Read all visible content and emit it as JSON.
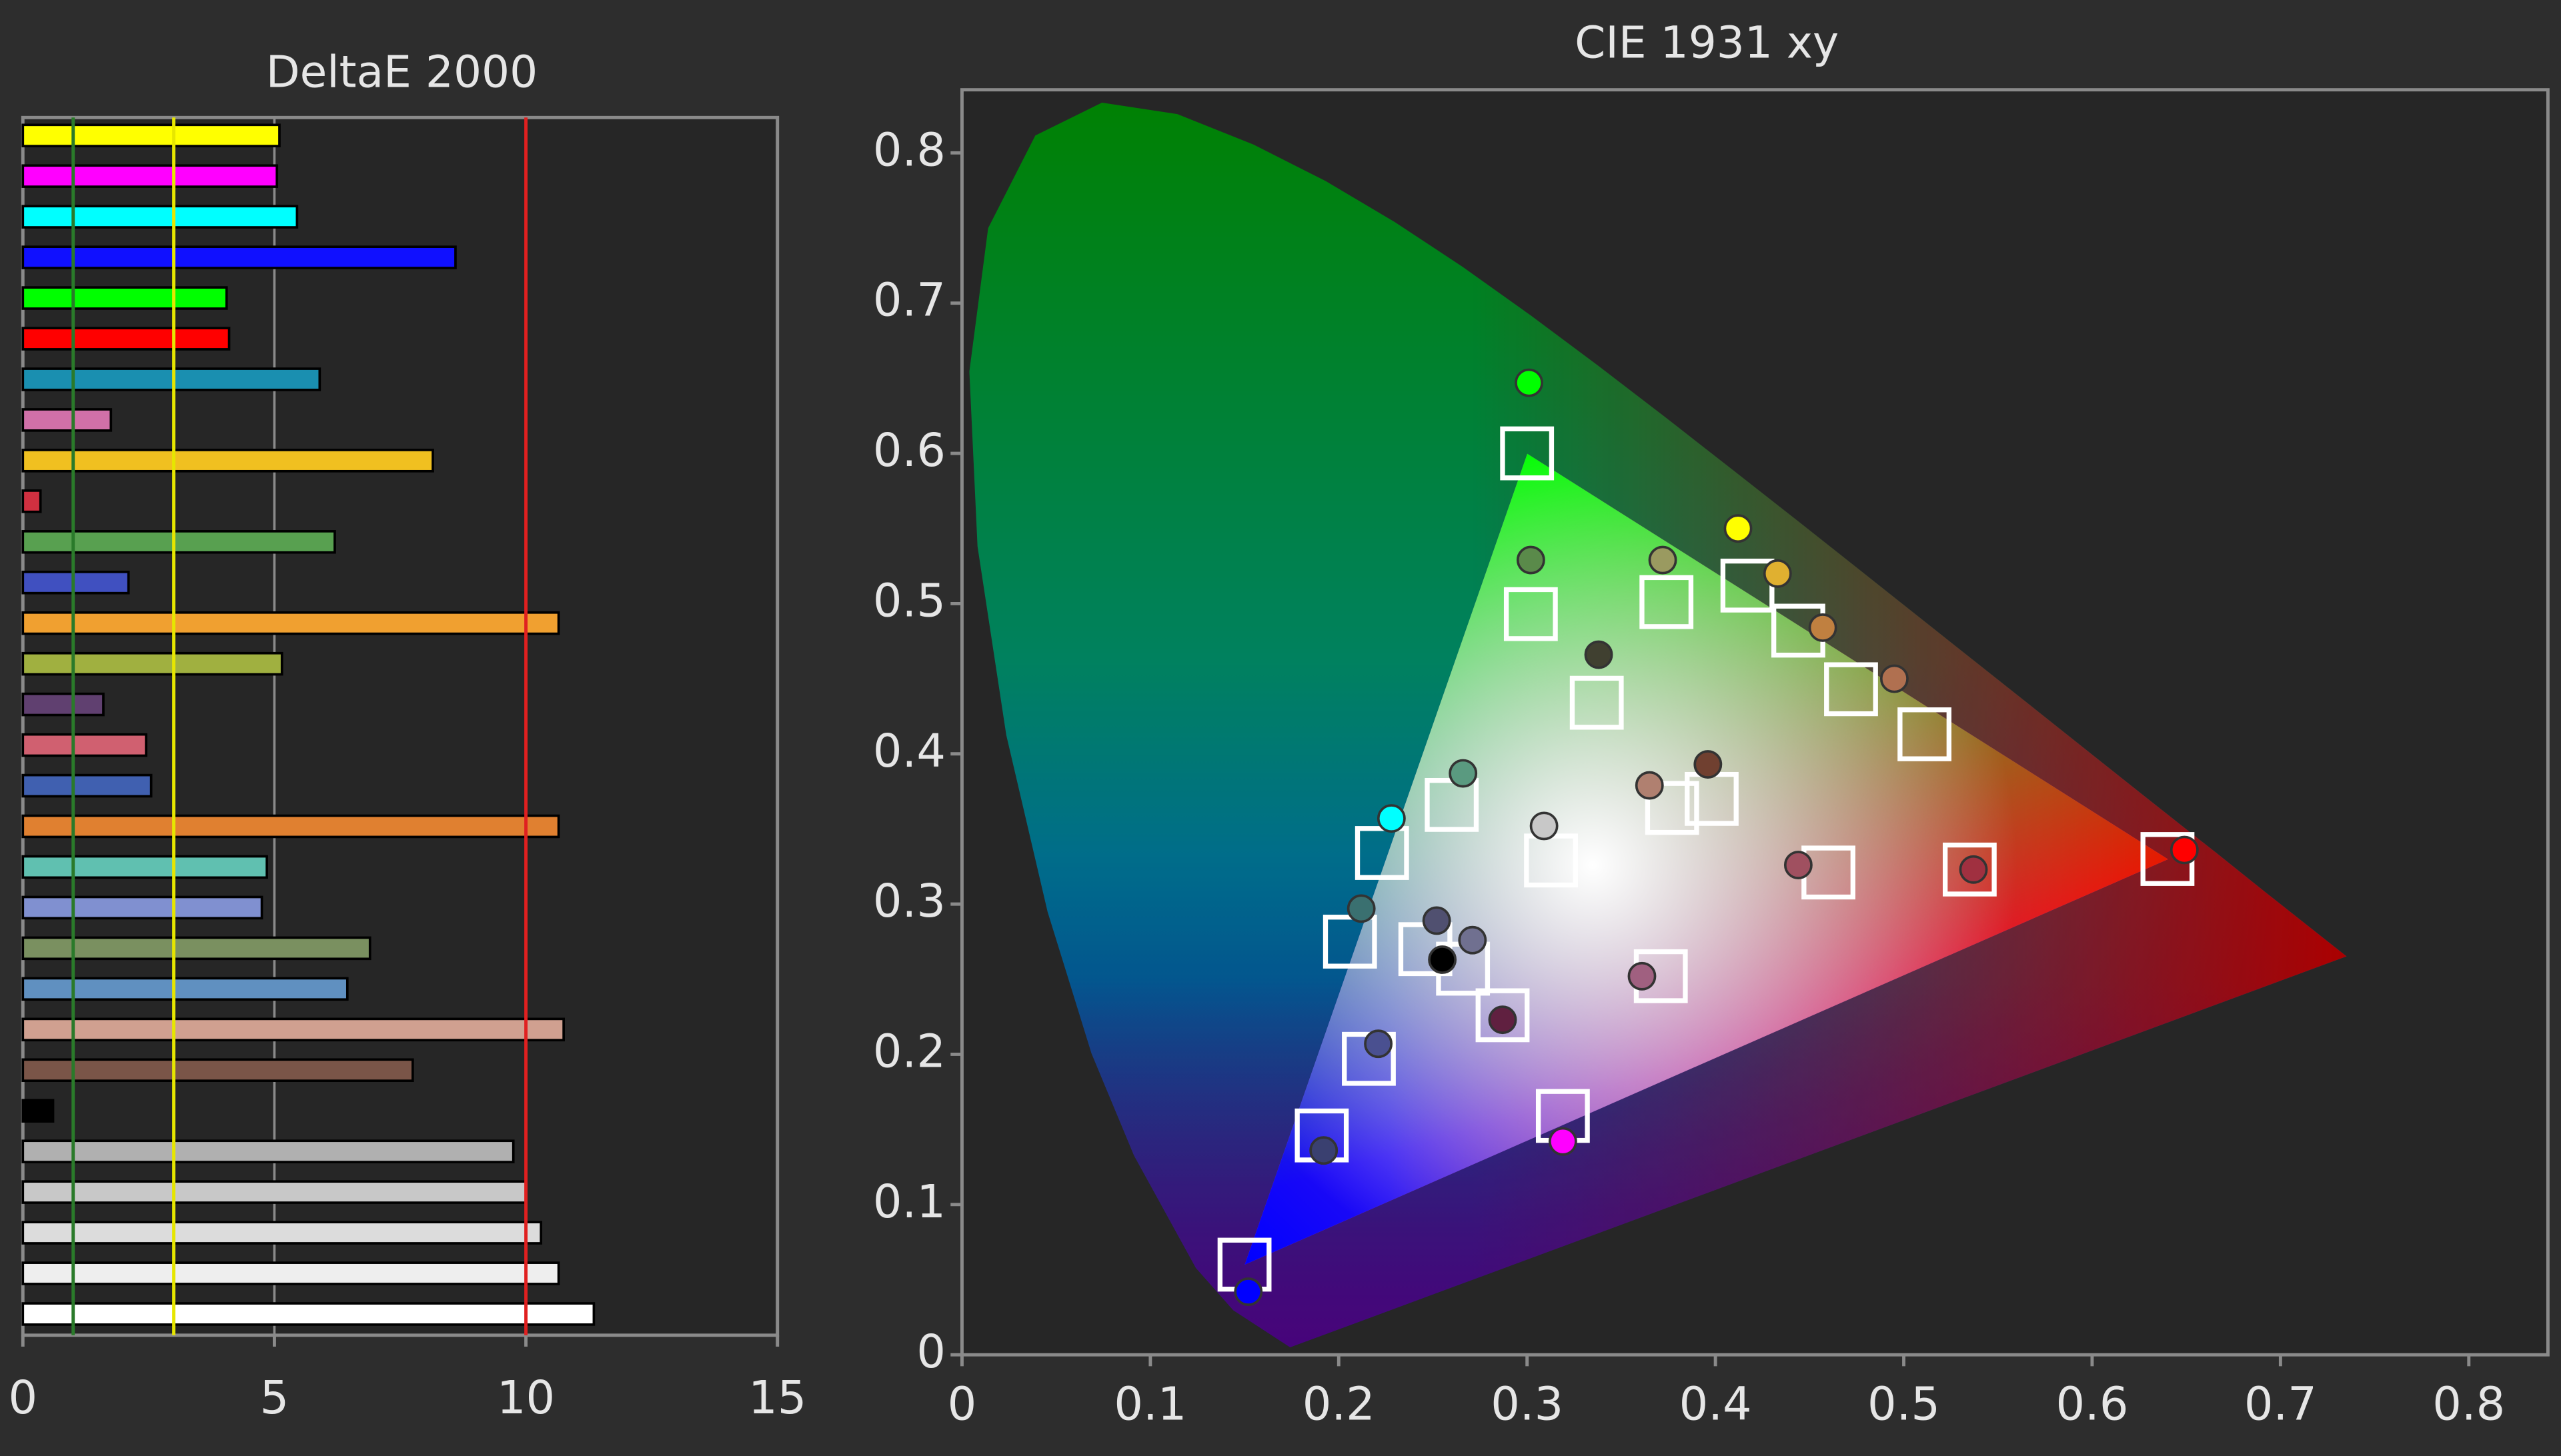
{
  "chart_data": [
    {
      "type": "hbar",
      "title": "DeltaE 2000",
      "categories": [
        null,
        null,
        null,
        null,
        null,
        null,
        null,
        null,
        null,
        null,
        null,
        null,
        null,
        null,
        null,
        null,
        null,
        null,
        null,
        null,
        null,
        null,
        null,
        null,
        null,
        null,
        null,
        null,
        null,
        null
      ],
      "values": [
        5.1,
        5.05,
        5.45,
        8.6,
        4.05,
        4.1,
        5.9,
        1.75,
        8.15,
        0.35,
        6.2,
        2.1,
        10.65,
        5.15,
        1.6,
        2.45,
        2.55,
        10.65,
        4.85,
        4.75,
        6.9,
        6.45,
        10.75,
        7.75,
        0.6,
        9.75,
        10.0,
        10.3,
        10.65,
        11.35
      ],
      "colors": [
        "#ffff00",
        "#ff00ff",
        "#00ffff",
        "#1010ff",
        "#00ff00",
        "#ff0000",
        "#1a8fb0",
        "#d070a8",
        "#f0c020",
        "#d03040",
        "#58a050",
        "#4050c0",
        "#f0a030",
        "#a0b040",
        "#604070",
        "#d06070",
        "#4060b0",
        "#e08030",
        "#60c0b0",
        "#8090d0",
        "#7a9060",
        "#6090c0",
        "#d0a090",
        "#7a5548",
        "#000000",
        "#b0b0b0",
        "#c8c8c8",
        "#dcdcdc",
        "#eeeeee",
        "#ffffff"
      ],
      "xlim": [
        0,
        15
      ],
      "xticks": [
        0,
        5,
        10,
        15
      ],
      "grid": true,
      "ref_lines": [
        {
          "value": 1,
          "color": "#2a7a2a"
        },
        {
          "value": 3,
          "color": "#e6e600"
        },
        {
          "value": 10,
          "color": "#e02020"
        }
      ]
    },
    {
      "type": "scatter",
      "title": "CIE 1931 xy",
      "xlim": [
        0,
        0.842
      ],
      "ylim": [
        0,
        0.842
      ],
      "xticks": [
        0,
        0.1,
        0.2,
        0.3,
        0.4,
        0.5,
        0.6,
        0.7,
        0.8
      ],
      "yticks": [
        0,
        0.1,
        0.2,
        0.3,
        0.4,
        0.5,
        0.6,
        0.7,
        0.8
      ],
      "series": [
        {
          "marker": "square",
          "color": "#ffffff",
          "x": [
            0.3,
            0.64,
            0.15,
            0.223,
            0.319,
            0.417,
            0.3127,
            0.302,
            0.374,
            0.337,
            0.444,
            0.472,
            0.511,
            0.26,
            0.398,
            0.377,
            0.46,
            0.535,
            0.206,
            0.246,
            0.266,
            0.287,
            0.371,
            0.216,
            0.191
          ],
          "y": [
            0.6,
            0.33,
            0.06,
            0.334,
            0.159,
            0.512,
            0.329,
            0.493,
            0.501,
            0.434,
            0.482,
            0.443,
            0.413,
            0.366,
            0.37,
            0.364,
            0.321,
            0.323,
            0.275,
            0.27,
            0.257,
            0.226,
            0.252,
            0.197,
            0.146
          ]
        },
        {
          "marker": "circle",
          "x": [
            0.301,
            0.649,
            0.152,
            0.228,
            0.319,
            0.412,
            0.309,
            0.302,
            0.372,
            0.338,
            0.433,
            0.457,
            0.495,
            0.266,
            0.396,
            0.365,
            0.444,
            0.537,
            0.212,
            0.252,
            0.271,
            0.287,
            0.361,
            0.221,
            0.192,
            0.255
          ],
          "y": [
            0.647,
            0.336,
            0.042,
            0.357,
            0.142,
            0.55,
            0.352,
            0.529,
            0.529,
            0.466,
            0.52,
            0.484,
            0.45,
            0.387,
            0.393,
            0.379,
            0.326,
            0.323,
            0.297,
            0.289,
            0.276,
            0.223,
            0.252,
            0.207,
            0.136,
            0.263
          ],
          "colors": [
            "#00ff00",
            "#ff0000",
            "#0000ff",
            "#00ffff",
            "#ff00ff",
            "#ffff00",
            "#c8c8c8",
            "#5a8a4a",
            "#9a9a60",
            "#404030",
            "#e0b030",
            "#c08040",
            "#b07050",
            "#5a9a80",
            "#704030",
            "#b08070",
            "#a05060",
            "#a03040",
            "#3a7070",
            "#505070",
            "#707090",
            "#602040",
            "#a06080",
            "#4a5090",
            "#3a4070",
            "#000000"
          ]
        }
      ]
    }
  ]
}
